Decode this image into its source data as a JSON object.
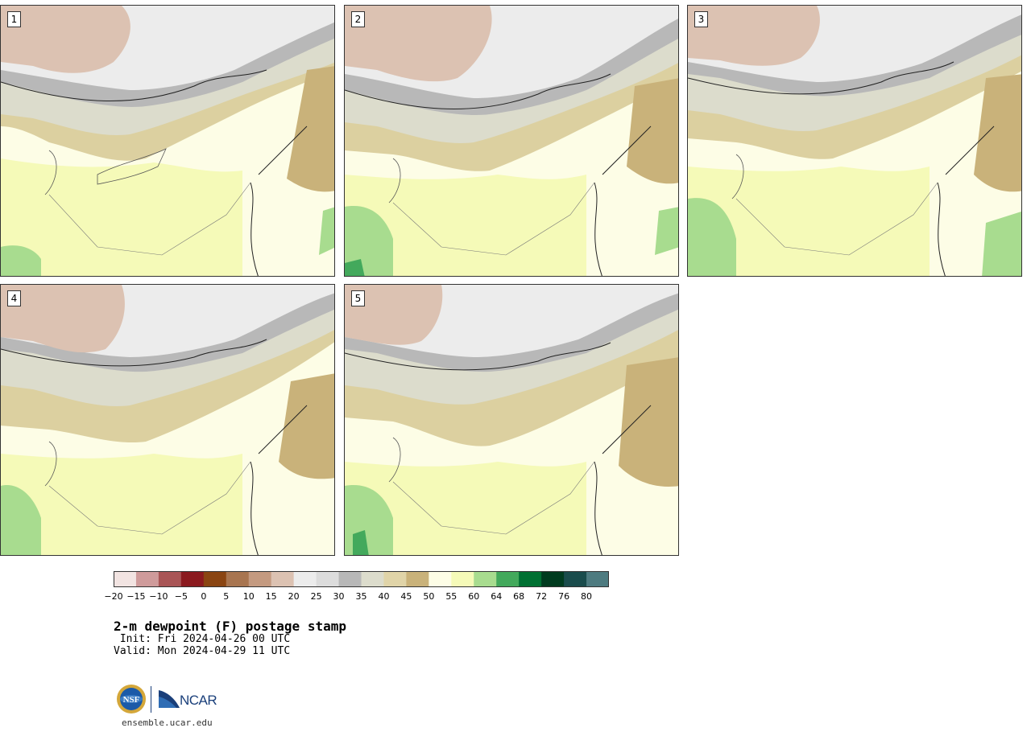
{
  "panels": [
    {
      "label": "1"
    },
    {
      "label": "2"
    },
    {
      "label": "3"
    },
    {
      "label": "4"
    },
    {
      "label": "5"
    }
  ],
  "colorbar": {
    "colors": [
      "#f2e4e2",
      "#cf9b9b",
      "#a95556",
      "#8b1a1f",
      "#8a4512",
      "#a87550",
      "#c49a80",
      "#dcc2b2",
      "#ececec",
      "#dcdcdc",
      "#b8b8b8",
      "#dcdccc",
      "#e0d4a8",
      "#c9b27a",
      "#fdfde6",
      "#f5fab8",
      "#a8dc8f",
      "#43a95c",
      "#007032",
      "#003b1f",
      "#1a4c4c",
      "#4e7b80"
    ],
    "tick_labels": [
      "−20",
      "−15",
      "−10",
      "−5",
      "0",
      "5",
      "10",
      "15",
      "20",
      "25",
      "30",
      "35",
      "40",
      "45",
      "50",
      "55",
      "60",
      "64",
      "68",
      "72",
      "76",
      "80"
    ]
  },
  "title": "2-m dewpoint (F) postage stamp",
  "init": " Init: Fri 2024-04-26 00 UTC",
  "valid": "Valid: Mon 2024-04-29 11 UTC",
  "footer": {
    "logo_text": "NCAR",
    "nsf_text": "NSF",
    "url": "ensemble.ucar.edu"
  }
}
